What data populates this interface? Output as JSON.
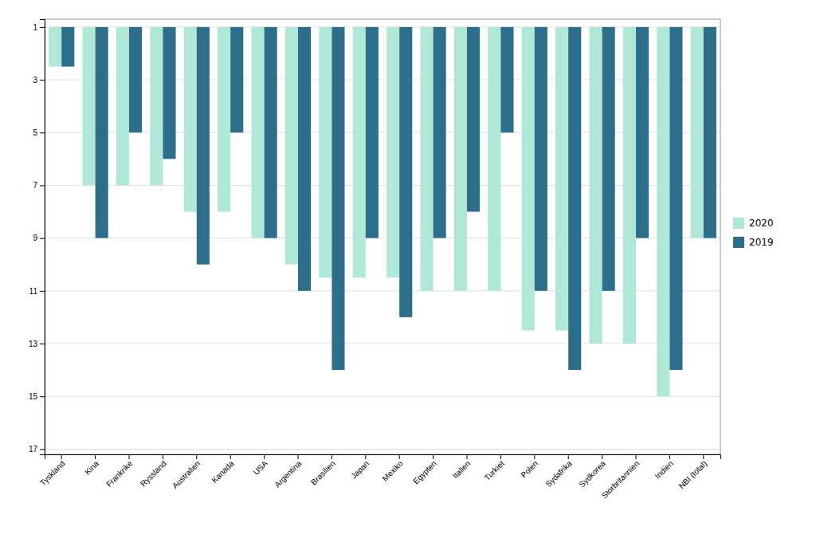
{
  "chart_data": {
    "type": "bar",
    "categories": [
      "Tyskland",
      "Kina",
      "Frankrike",
      "Ryssland",
      "Australien",
      "Kanada",
      "USA",
      "Argentina",
      "Brasilien",
      "Japan",
      "Mexiko",
      "Egypten",
      "Italien",
      "Turkiet",
      "Polen",
      "Sydafrika",
      "Sydkorea",
      "Storbritannien",
      "Indien",
      "NBI (total)"
    ],
    "series": [
      {
        "name": "2020",
        "color": "#b0e8d8",
        "values": [
          2.5,
          7,
          7,
          7,
          8,
          8,
          9,
          10,
          10.5,
          10.5,
          10.5,
          11,
          11,
          11,
          12.5,
          12.5,
          13,
          13,
          15,
          9
        ]
      },
      {
        "name": "2019",
        "color": "#2d6f8a",
        "values": [
          2.5,
          9,
          5,
          6,
          10,
          5,
          9,
          11,
          14,
          9,
          12,
          9,
          8,
          5,
          11,
          14,
          11,
          9,
          14,
          9
        ]
      }
    ],
    "ylim": [
      17.2,
      0.7
    ],
    "yticks": [
      1,
      3,
      5,
      7,
      9,
      11,
      13,
      15,
      17
    ],
    "grid": true,
    "legend": "right"
  }
}
